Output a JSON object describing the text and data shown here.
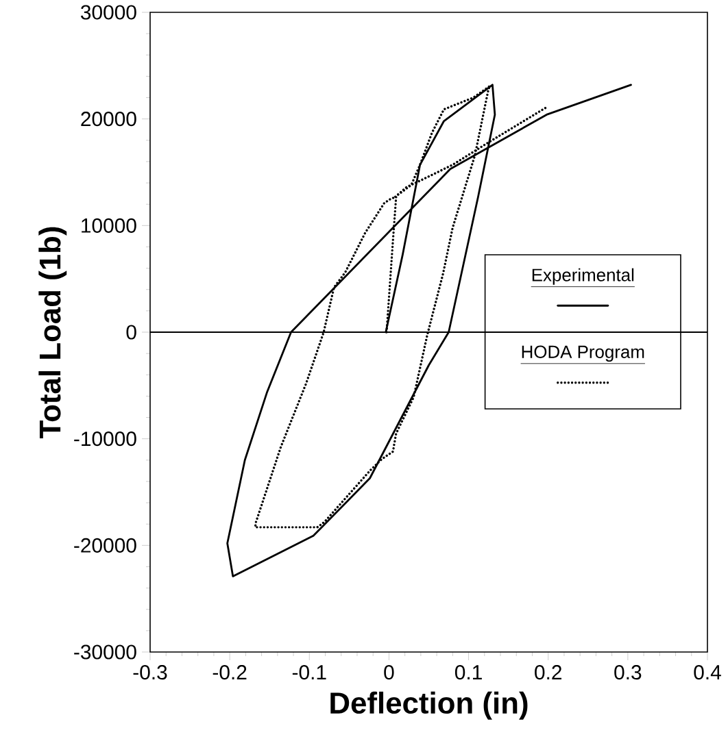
{
  "chart_data": {
    "type": "line",
    "xlabel": "Deflection (in)",
    "ylabel": "Total Load (1b)",
    "xlim": [
      -0.3,
      0.4
    ],
    "ylim": [
      -30000,
      30000
    ],
    "xticks": [
      -0.3,
      -0.2,
      -0.1,
      0,
      0.1,
      0.2,
      0.3,
      0.4
    ],
    "yticks": [
      -30000,
      -20000,
      -10000,
      0,
      10000,
      20000,
      30000
    ],
    "legend": "right",
    "ref_lines": [
      {
        "axis": "y",
        "value": 0
      }
    ],
    "series": [
      {
        "name": "Experimental",
        "color": "#000000",
        "line_style": "solid",
        "x": [
          -0.004,
          0.017,
          0.039,
          0.069,
          0.13,
          0.133,
          0.112,
          0.075,
          0.05,
          -0.024,
          -0.095,
          -0.196,
          -0.203,
          -0.181,
          -0.153,
          -0.123,
          0.077,
          0.198,
          0.304
        ],
        "values": [
          0,
          7200,
          15700,
          19800,
          23200,
          20400,
          12700,
          0,
          -3100,
          -13700,
          -19100,
          -22900,
          -19800,
          -12000,
          -5600,
          0,
          15300,
          20400,
          23200
        ]
      },
      {
        "name": "HODA Program",
        "color": "#000000",
        "line_style": "dotted",
        "x": [
          -0.003,
          0.005,
          0.009,
          0.002,
          -0.006,
          -0.03,
          -0.055,
          -0.069,
          -0.082,
          -0.104,
          -0.136,
          -0.167,
          -0.168,
          -0.09,
          -0.081,
          -0.024,
          -0.009,
          0.005,
          0.009,
          0.031,
          0.048,
          0.068,
          0.08,
          0.108,
          0.125,
          0.127,
          0.106,
          0.069,
          0.054,
          0.039,
          0.028,
          0.008,
          0.022,
          0.039,
          0.08,
          0.125,
          0.198
        ],
        "values": [
          0,
          8600,
          12700,
          12500,
          12100,
          9300,
          5600,
          4200,
          0,
          -4800,
          -10800,
          -17800,
          -18300,
          -18300,
          -17800,
          -13000,
          -11900,
          -11200,
          -9500,
          -6100,
          -300,
          5500,
          9800,
          16600,
          22800,
          23100,
          22000,
          20900,
          18700,
          15700,
          13800,
          12700,
          13600,
          14200,
          15700,
          17800,
          21100
        ]
      }
    ]
  }
}
